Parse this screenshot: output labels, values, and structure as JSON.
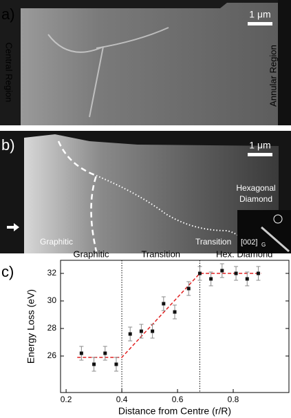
{
  "panel_a": {
    "label": "a)",
    "scale_bar": "1 μm",
    "left_label": "Central Region",
    "right_label": "Annular Region"
  },
  "panel_b": {
    "label": "b)",
    "scale_bar": "1 μm",
    "hex_label": [
      "Hexagonal",
      "Diamond"
    ],
    "left_label": "Graphitic",
    "right_label": "Transition",
    "inset_label": "[002]",
    "inset_subscript": "G"
  },
  "chart_data": {
    "type": "scatter",
    "panel_label": "c)",
    "x_label": "Distance from Centre (r/R)",
    "y_label": "Energy Loss (eV)",
    "x": [
      0.255,
      0.3,
      0.34,
      0.38,
      0.43,
      0.47,
      0.51,
      0.55,
      0.59,
      0.64,
      0.68,
      0.72,
      0.76,
      0.81,
      0.85,
      0.89
    ],
    "values": [
      26.2,
      25.4,
      26.2,
      25.4,
      27.6,
      27.8,
      27.8,
      29.8,
      29.2,
      30.9,
      32.0,
      31.6,
      32.2,
      32.0,
      31.6,
      32.0
    ],
    "errors": [
      0.5,
      0.5,
      0.5,
      0.5,
      0.5,
      0.5,
      0.5,
      0.5,
      0.5,
      0.5,
      0.5,
      0.5,
      0.5,
      0.5,
      0.5,
      0.5
    ],
    "color": "#111111",
    "fit": {
      "x": [
        0.24,
        0.4,
        0.68,
        0.9
      ],
      "values": [
        25.9,
        25.9,
        32.0,
        32.0
      ],
      "color": "#e02020"
    },
    "boundaries": [
      0.4,
      0.68
    ],
    "regions": [
      "Graphitic",
      "Transition",
      "Hex. Diamond"
    ],
    "xlim": [
      0.18,
      1.0
    ],
    "ylim": [
      23.35,
      32.95
    ],
    "xticks": [
      0.2,
      0.4,
      0.6,
      0.8
    ],
    "yticks": [
      26,
      28,
      30,
      32
    ]
  }
}
